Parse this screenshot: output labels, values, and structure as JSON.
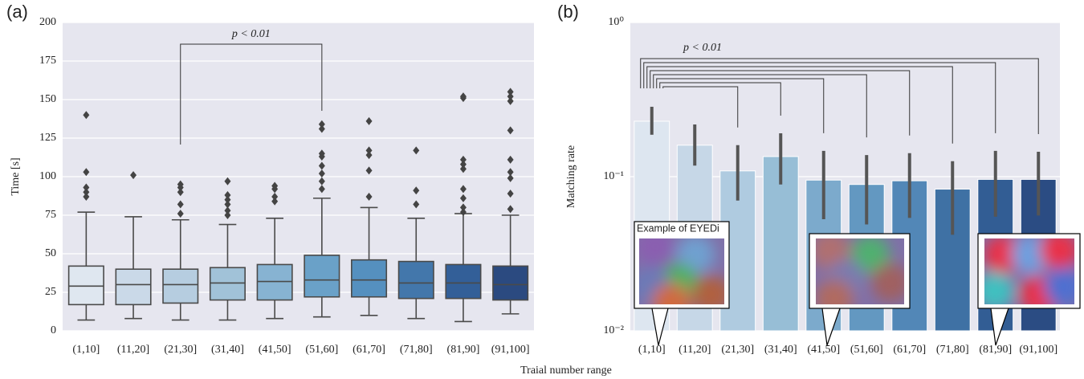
{
  "figure": {
    "xlabel": "Traial number range"
  },
  "chart_data": [
    {
      "type": "box",
      "panel_label": "(a)",
      "ylabel": "Time [s]",
      "annotation": "p < 0.01",
      "categories": [
        "(1,10]",
        "(11,20]",
        "(21,30]",
        "(31,40]",
        "(41,50]",
        "(51,60]",
        "(61,70]",
        "(71,80]",
        "(81,90]",
        "(91,100]"
      ],
      "colors": [
        "#dfe7f0",
        "#cad9e8",
        "#b6cde0",
        "#a1c2d8",
        "#87b3d2",
        "#6aa1c8",
        "#5590bf",
        "#4377ab",
        "#335f98",
        "#2b4a80"
      ],
      "boxes": [
        {
          "whislo": 7,
          "q1": 17,
          "med": 29,
          "q3": 42,
          "whishi": 77,
          "fliers": [
            140,
            103,
            93,
            90,
            87
          ]
        },
        {
          "whislo": 8,
          "q1": 17,
          "med": 30,
          "q3": 40,
          "whishi": 74,
          "fliers": [
            101
          ]
        },
        {
          "whislo": 7,
          "q1": 18,
          "med": 30,
          "q3": 40,
          "whishi": 72,
          "fliers": [
            95,
            93,
            90,
            82,
            76
          ]
        },
        {
          "whislo": 7,
          "q1": 20,
          "med": 31,
          "q3": 41,
          "whishi": 69,
          "fliers": [
            97,
            88,
            85,
            82,
            78,
            75
          ]
        },
        {
          "whislo": 8,
          "q1": 20,
          "med": 32,
          "q3": 43,
          "whishi": 73,
          "fliers": [
            94,
            92,
            87,
            84
          ]
        },
        {
          "whislo": 9,
          "q1": 22,
          "med": 33,
          "q3": 49,
          "whishi": 86,
          "fliers": [
            134,
            131,
            115,
            113,
            107,
            102,
            97,
            92
          ]
        },
        {
          "whislo": 10,
          "q1": 22,
          "med": 33,
          "q3": 46,
          "whishi": 80,
          "fliers": [
            136,
            117,
            114,
            104,
            87
          ]
        },
        {
          "whislo": 8,
          "q1": 21,
          "med": 31,
          "q3": 45,
          "whishi": 73,
          "fliers": [
            117,
            91,
            82
          ]
        },
        {
          "whislo": 6,
          "q1": 21,
          "med": 31,
          "q3": 43,
          "whishi": 76,
          "fliers": [
            152,
            151,
            111,
            108,
            105,
            92,
            86,
            80,
            77
          ]
        },
        {
          "whislo": 11,
          "q1": 20,
          "med": 30,
          "q3": 42,
          "whishi": 75,
          "fliers": [
            155,
            152,
            149,
            130,
            111,
            103,
            99,
            89,
            79
          ]
        }
      ],
      "ylim": [
        0,
        200
      ],
      "yticks": [
        0,
        25,
        50,
        75,
        100,
        125,
        150,
        175,
        200
      ],
      "grid": true
    },
    {
      "type": "bar",
      "panel_label": "(b)",
      "ylabel": "Matching rate",
      "annotation": "p < 0.01",
      "inset_caption": "Example of EYEDi",
      "categories": [
        "(1,10]",
        "(11,20]",
        "(21,30]",
        "(31,40]",
        "(41,50]",
        "(51,60]",
        "(61,70]",
        "(71,80]",
        "(81,90]",
        "(91,100]"
      ],
      "colors": [
        "#dde6f0",
        "#c6d7e7",
        "#afcbe0",
        "#97bed6",
        "#7caacc",
        "#6398c1",
        "#5287b7",
        "#3f71a4",
        "#325d94",
        "#2b4c83"
      ],
      "values": [
        0.229,
        0.16,
        0.109,
        0.135,
        0.095,
        0.089,
        0.094,
        0.083,
        0.096,
        0.096
      ],
      "ci_low": [
        0.187,
        0.118,
        0.07,
        0.089,
        0.053,
        0.049,
        0.054,
        0.042,
        0.055,
        0.056
      ],
      "ci_high": [
        0.284,
        0.218,
        0.16,
        0.191,
        0.147,
        0.138,
        0.142,
        0.126,
        0.147,
        0.145
      ],
      "yscale": "log",
      "ylim": [
        0.01,
        1
      ],
      "yticks": [
        {
          "value": 0.01,
          "label": "10⁻²"
        },
        {
          "value": 0.1,
          "label": "10⁻¹"
        },
        {
          "value": 1,
          "label": "10⁰"
        }
      ],
      "grid": true
    }
  ]
}
